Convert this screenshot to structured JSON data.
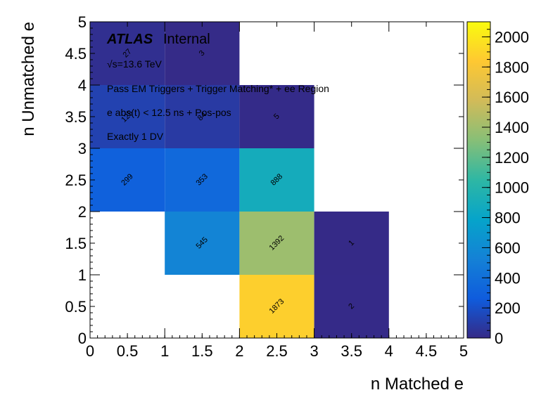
{
  "chart_data": {
    "type": "heatmap",
    "xlabel": "n Matched e",
    "ylabel": "n Unmatched e",
    "xlim": [
      0,
      5
    ],
    "ylim": [
      0,
      5
    ],
    "x_ticks": [
      "0",
      "0.5",
      "1",
      "1.5",
      "2",
      "2.5",
      "3",
      "3.5",
      "4",
      "4.5",
      "5"
    ],
    "y_ticks": [
      "0",
      "0.5",
      "1",
      "1.5",
      "2",
      "2.5",
      "3",
      "3.5",
      "4",
      "4.5",
      "5"
    ],
    "colorbar": {
      "range": [
        0,
        2100
      ],
      "ticks": [
        "0",
        "200",
        "400",
        "600",
        "800",
        "1000",
        "1200",
        "1400",
        "1600",
        "1800",
        "2000"
      ],
      "palette": [
        "#352a87",
        "#0f5cdd",
        "#1481d6",
        "#06a4ca",
        "#2eb7a4",
        "#87bf77",
        "#d1bb59",
        "#fec832",
        "#f9fb0e"
      ]
    },
    "cells": [
      {
        "x": [
          2,
          3
        ],
        "y": [
          0,
          1
        ],
        "value": 1873,
        "label": "1873"
      },
      {
        "x": [
          3,
          4
        ],
        "y": [
          0,
          1
        ],
        "value": 2,
        "label": "2"
      },
      {
        "x": [
          1,
          2
        ],
        "y": [
          1,
          2
        ],
        "value": 545,
        "label": "545"
      },
      {
        "x": [
          2,
          3
        ],
        "y": [
          1,
          2
        ],
        "value": 1392,
        "label": "1392"
      },
      {
        "x": [
          3,
          4
        ],
        "y": [
          1,
          2
        ],
        "value": 1,
        "label": "1"
      },
      {
        "x": [
          0,
          1
        ],
        "y": [
          2,
          3
        ],
        "value": 299,
        "label": "299"
      },
      {
        "x": [
          1,
          2
        ],
        "y": [
          2,
          3
        ],
        "value": 353,
        "label": "353"
      },
      {
        "x": [
          2,
          3
        ],
        "y": [
          2,
          3
        ],
        "value": 888,
        "label": "888"
      },
      {
        "x": [
          0,
          1
        ],
        "y": [
          3,
          4
        ],
        "value": 125,
        "label": "125"
      },
      {
        "x": [
          1,
          2
        ],
        "y": [
          3,
          4
        ],
        "value": 84,
        "label": "84"
      },
      {
        "x": [
          2,
          3
        ],
        "y": [
          3,
          4
        ],
        "value": 5,
        "label": "5"
      },
      {
        "x": [
          0,
          1
        ],
        "y": [
          4,
          5
        ],
        "value": 27,
        "label": "27"
      },
      {
        "x": [
          1,
          2
        ],
        "y": [
          4,
          5
        ],
        "value": 3,
        "label": "3"
      }
    ],
    "annotations": {
      "atlas": "ATLAS",
      "atlas_tag": "Internal",
      "energy": "√s=13.6 TeV",
      "line1": "Pass EM Triggers + Trigger Matching* + ee Region",
      "line2": "e abs(t) < 12.5 ns + Pos-pos",
      "line3": "Exactly 1 DV"
    }
  }
}
